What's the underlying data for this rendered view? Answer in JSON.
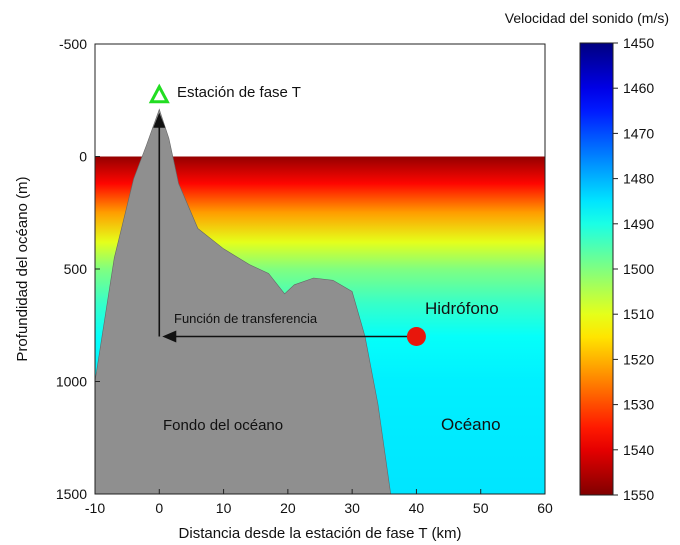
{
  "chart_data": {
    "type": "heatmap",
    "xlabel": "Distancia desde la estación de fase T (km)",
    "ylabel": "Profundidad del océano (m)",
    "xlim": [
      -10,
      60
    ],
    "ylim": [
      -500,
      1500
    ],
    "x_ticks": [
      "-10",
      "0",
      "10",
      "20",
      "30",
      "40",
      "50",
      "60"
    ],
    "y_ticks": [
      "-500",
      "0",
      "500",
      "1000",
      "1500"
    ],
    "colorbar": {
      "label": "Velocidad del sonido (m/s)",
      "min": 1450,
      "max": 1550,
      "ticks": [
        "1450",
        "1460",
        "1470",
        "1480",
        "1490",
        "1500",
        "1510",
        "1520",
        "1530",
        "1540",
        "1550"
      ]
    },
    "sound_speed_profile": [
      {
        "depth": 0,
        "speed": 1548
      },
      {
        "depth": 120,
        "speed": 1537
      },
      {
        "depth": 250,
        "speed": 1522
      },
      {
        "depth": 380,
        "speed": 1510
      },
      {
        "depth": 500,
        "speed": 1500
      },
      {
        "depth": 650,
        "speed": 1493
      },
      {
        "depth": 800,
        "speed": 1488
      },
      {
        "depth": 1000,
        "speed": 1486
      },
      {
        "depth": 1500,
        "speed": 1485
      }
    ],
    "seafloor": [
      {
        "x": -10,
        "depth": 1000
      },
      {
        "x": -7,
        "depth": 450
      },
      {
        "x": -4,
        "depth": 100
      },
      {
        "x": -2,
        "depth": -50
      },
      {
        "x": 0,
        "depth": -210
      },
      {
        "x": 1.5,
        "depth": -80
      },
      {
        "x": 3,
        "depth": 120
      },
      {
        "x": 6,
        "depth": 320
      },
      {
        "x": 10,
        "depth": 410
      },
      {
        "x": 14,
        "depth": 480
      },
      {
        "x": 17,
        "depth": 520
      },
      {
        "x": 19.5,
        "depth": 610
      },
      {
        "x": 21,
        "depth": 570
      },
      {
        "x": 24,
        "depth": 540
      },
      {
        "x": 27,
        "depth": 550
      },
      {
        "x": 30,
        "depth": 600
      },
      {
        "x": 32,
        "depth": 800
      },
      {
        "x": 34,
        "depth": 1100
      },
      {
        "x": 36,
        "depth": 1500
      }
    ],
    "station": {
      "x": 0,
      "depth": -270,
      "label": "Estación de fase T"
    },
    "hydrophone": {
      "x": 40,
      "depth": 800,
      "label": "Hidrófono"
    },
    "path_label": "Función de transferencia",
    "labels": {
      "seafloor": "Fondo del océano",
      "ocean": "Océano"
    }
  },
  "colors": {
    "seafloor": "#8f8f8f",
    "hydrophone": "#e8160c",
    "station_marker": "#22dd22",
    "arrow": "#111111"
  }
}
